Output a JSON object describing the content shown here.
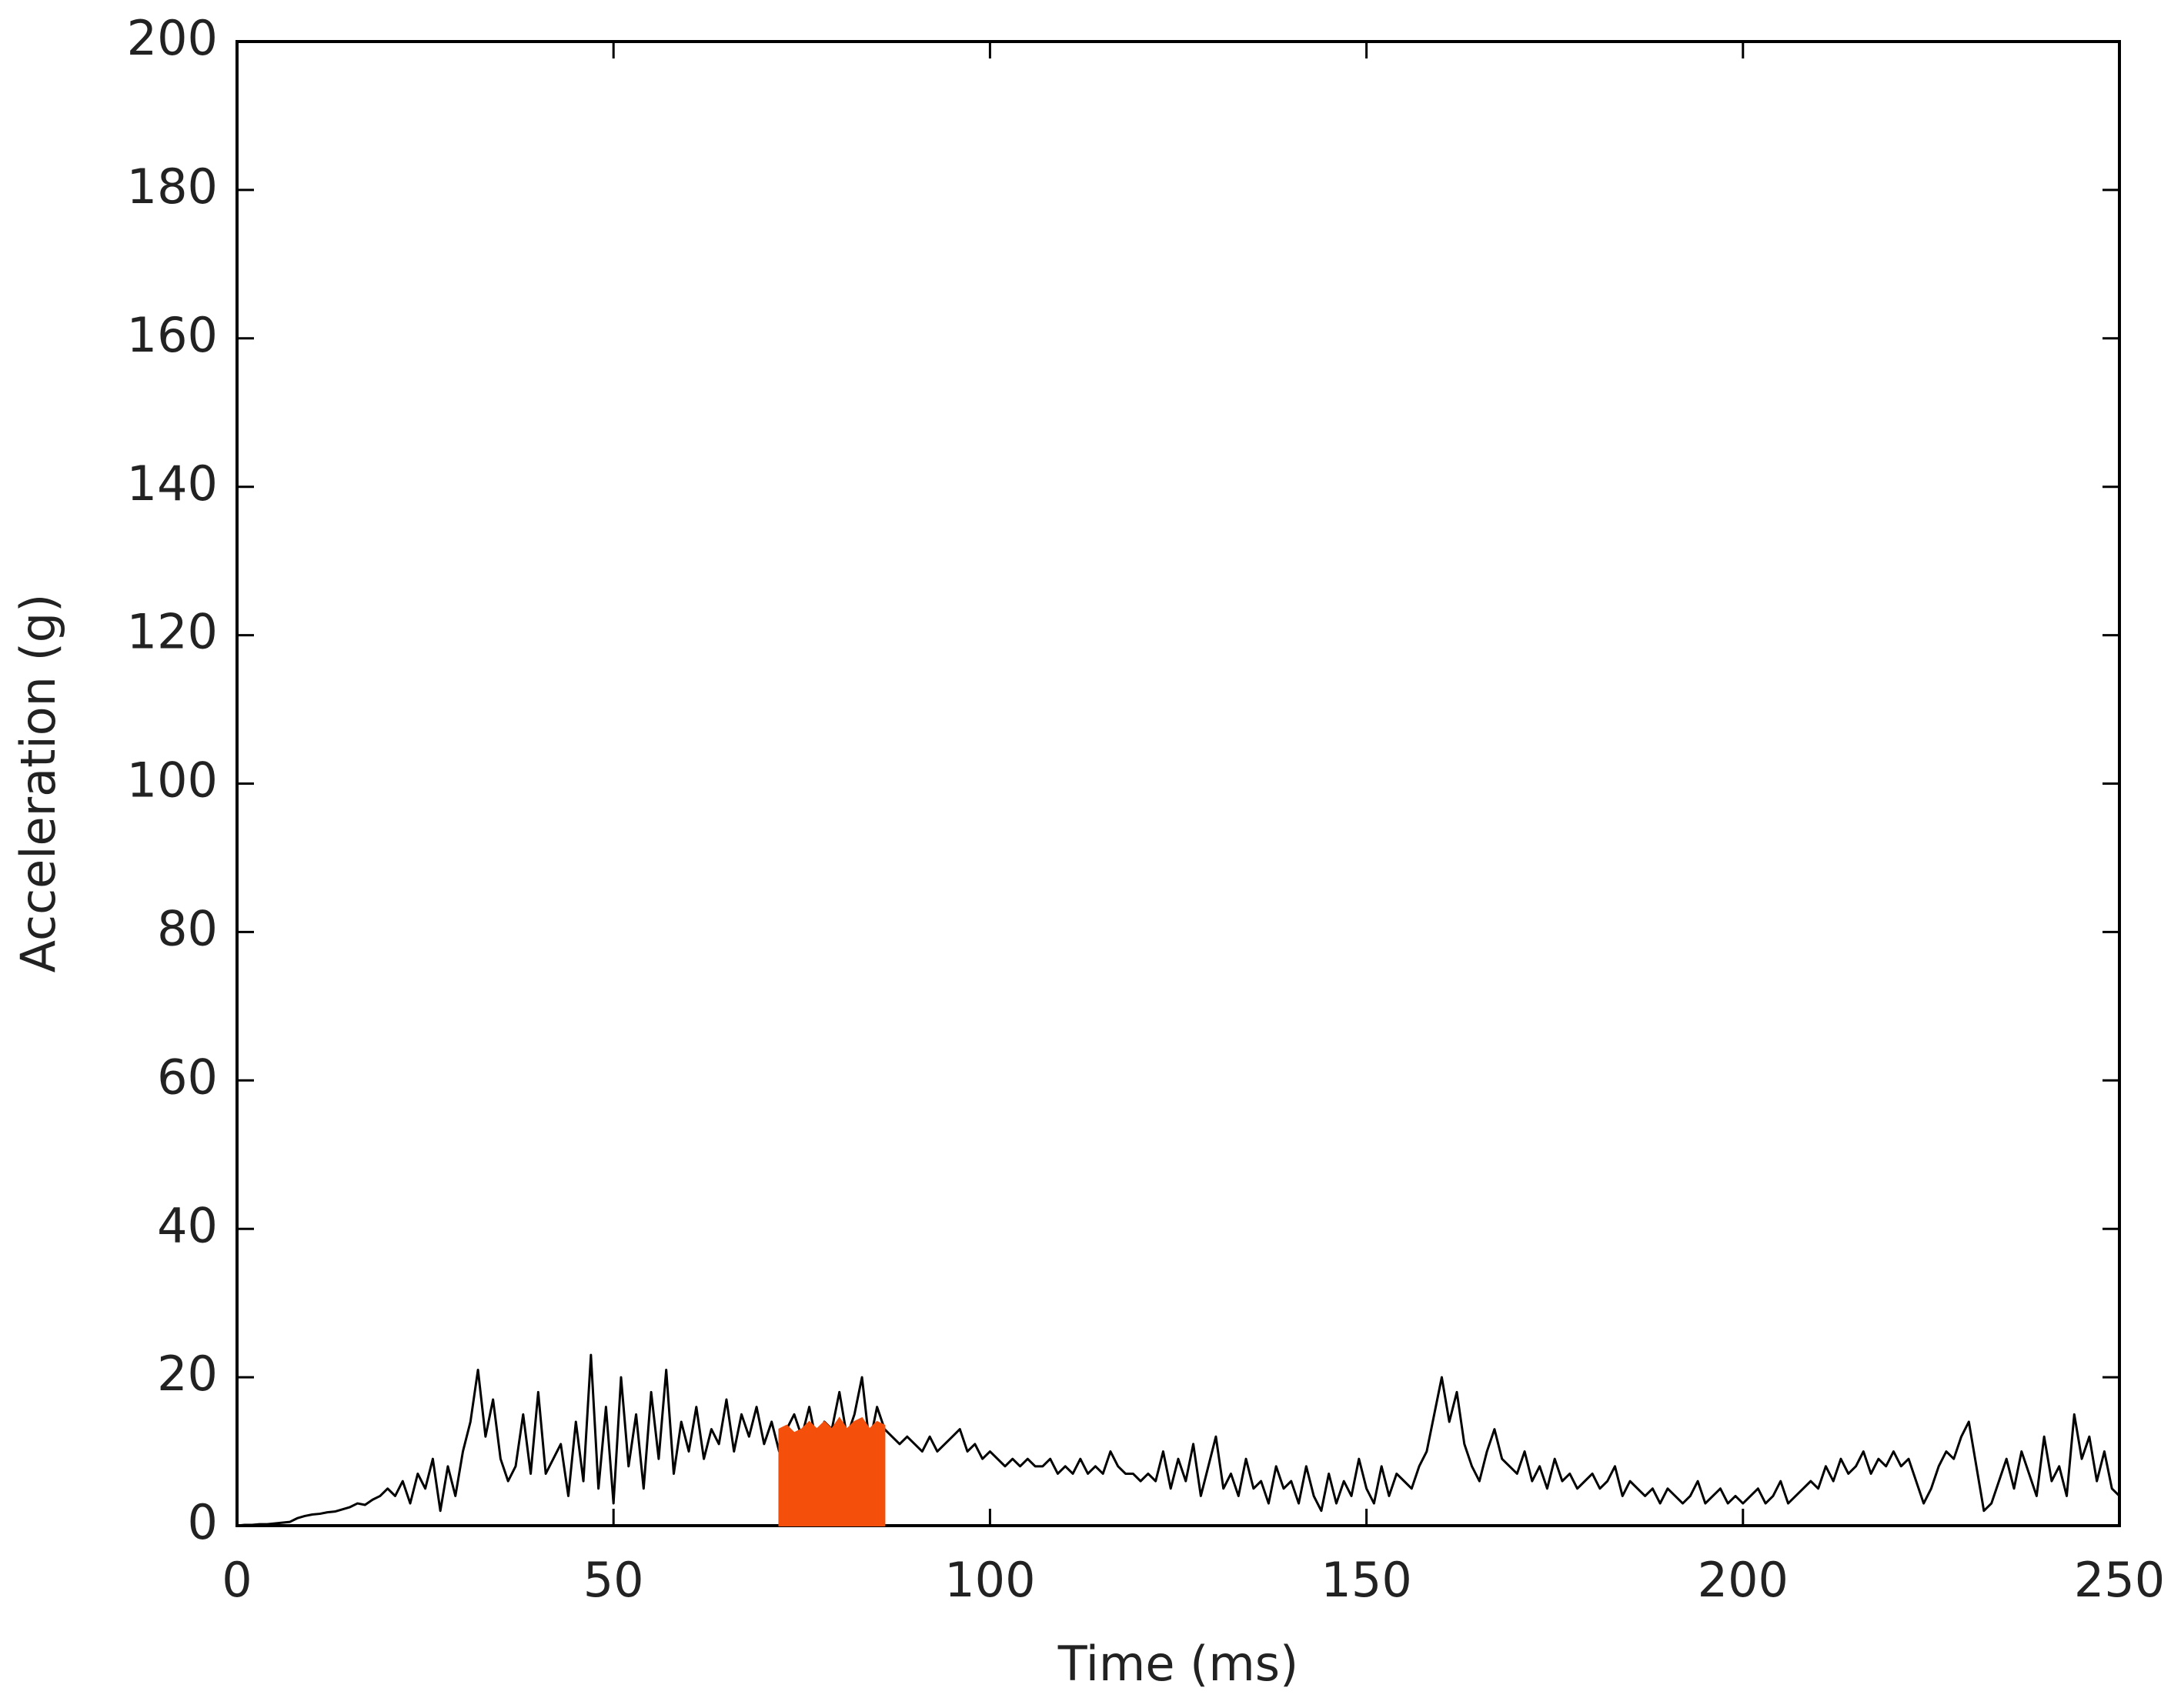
{
  "chart_data": {
    "type": "line",
    "xlabel": "Time (ms)",
    "ylabel": "Acceleration (g)",
    "xlim": [
      0,
      250
    ],
    "xticks": [
      0,
      50,
      100,
      150,
      200,
      250
    ],
    "ylim": [
      0,
      200
    ],
    "yticks": [
      0,
      20,
      40,
      60,
      80,
      100,
      120,
      140,
      160,
      180,
      200
    ],
    "grid": false,
    "x": [
      0,
      1,
      2,
      3,
      4,
      5,
      6,
      7,
      8,
      9,
      10,
      11,
      12,
      13,
      14,
      15,
      16,
      17,
      18,
      19,
      20,
      21,
      22,
      23,
      24,
      25,
      26,
      27,
      28,
      29,
      30,
      31,
      32,
      33,
      34,
      35,
      36,
      37,
      38,
      39,
      40,
      41,
      42,
      43,
      44,
      45,
      46,
      47,
      48,
      49,
      50,
      51,
      52,
      53,
      54,
      55,
      56,
      57,
      58,
      59,
      60,
      61,
      62,
      63,
      64,
      65,
      66,
      67,
      68,
      69,
      70,
      71,
      72,
      73,
      74,
      75,
      76,
      77,
      78,
      79,
      80,
      81,
      82,
      83,
      84,
      85,
      86,
      87,
      88,
      89,
      90,
      91,
      92,
      93,
      94,
      95,
      96,
      97,
      98,
      99,
      100,
      101,
      102,
      103,
      104,
      105,
      106,
      107,
      108,
      109,
      110,
      111,
      112,
      113,
      114,
      115,
      116,
      117,
      118,
      119,
      120,
      121,
      122,
      123,
      124,
      125,
      126,
      127,
      128,
      129,
      130,
      131,
      132,
      133,
      134,
      135,
      136,
      137,
      138,
      139,
      140,
      141,
      142,
      143,
      144,
      145,
      146,
      147,
      148,
      149,
      150,
      151,
      152,
      153,
      154,
      155,
      156,
      157,
      158,
      159,
      160,
      161,
      162,
      163,
      164,
      165,
      166,
      167,
      168,
      169,
      170,
      171,
      172,
      173,
      174,
      175,
      176,
      177,
      178,
      179,
      180,
      181,
      182,
      183,
      184,
      185,
      186,
      187,
      188,
      189,
      190,
      191,
      192,
      193,
      194,
      195,
      196,
      197,
      198,
      199,
      200,
      201,
      202,
      203,
      204,
      205,
      206,
      207,
      208,
      209,
      210,
      211,
      212,
      213,
      214,
      215,
      216,
      217,
      218,
      219,
      220,
      221,
      222,
      223,
      224,
      225,
      226,
      227,
      228,
      229,
      230,
      231,
      232,
      233,
      234,
      235,
      236,
      237,
      238,
      239,
      240,
      241,
      242,
      243,
      244,
      245,
      246,
      247,
      248,
      249,
      250
    ],
    "series": [
      {
        "color": "#000000",
        "values": [
          0,
          0.1,
          0.1,
          0.2,
          0.2,
          0.3,
          0.4,
          0.5,
          1,
          1.3,
          1.5,
          1.6,
          1.8,
          1.9,
          2.2,
          2.5,
          3,
          2.8,
          3.5,
          4,
          5,
          4,
          6,
          3,
          7,
          5,
          9,
          2,
          8,
          4,
          10,
          14,
          21,
          12,
          17,
          9,
          6,
          8,
          15,
          7,
          18,
          7,
          9,
          11,
          4,
          14,
          6,
          23,
          5,
          16,
          3,
          20,
          8,
          15,
          5,
          18,
          9,
          21,
          7,
          14,
          10,
          16,
          9,
          13,
          11,
          17,
          10,
          15,
          12,
          16,
          11,
          14,
          10,
          13,
          15,
          12,
          16,
          11,
          14,
          13,
          18,
          12,
          15,
          20,
          11,
          16,
          13,
          12,
          11,
          12,
          11,
          10,
          12,
          10,
          11,
          12,
          13,
          10,
          11,
          9,
          10,
          9,
          8,
          9,
          8,
          9,
          8,
          8,
          9,
          7,
          8,
          7,
          9,
          7,
          8,
          7,
          10,
          8,
          7,
          7,
          6,
          7,
          6,
          10,
          5,
          9,
          6,
          11,
          4,
          8,
          12,
          5,
          7,
          4,
          9,
          5,
          6,
          3,
          8,
          5,
          6,
          3,
          8,
          4,
          2,
          7,
          3,
          6,
          4,
          9,
          5,
          3,
          8,
          4,
          7,
          6,
          5,
          8,
          10,
          15,
          20,
          14,
          18,
          11,
          8,
          6,
          10,
          13,
          9,
          8,
          7,
          10,
          6,
          8,
          5,
          9,
          6,
          7,
          5,
          6,
          7,
          5,
          6,
          8,
          4,
          6,
          5,
          4,
          5,
          3,
          5,
          4,
          3,
          4,
          6,
          3,
          4,
          5,
          3,
          4,
          3,
          4,
          5,
          3,
          4,
          6,
          3,
          4,
          5,
          6,
          5,
          8,
          6,
          9,
          7,
          8,
          10,
          7,
          9,
          8,
          10,
          8,
          9,
          6,
          3,
          5,
          8,
          10,
          9,
          12,
          14,
          8,
          2,
          3,
          6,
          9,
          5,
          10,
          7,
          4,
          12,
          6,
          8,
          4,
          15,
          9,
          12,
          6,
          10,
          5,
          4
        ]
      },
      {
        "color": "#f4500b",
        "fill": true,
        "x": [
          72,
          73,
          74,
          75,
          76,
          77,
          78,
          79,
          80,
          81,
          82,
          83,
          84,
          85,
          86
        ],
        "values": [
          13,
          13.5,
          12.5,
          13,
          14,
          13,
          14,
          13,
          14.5,
          13,
          14,
          14.5,
          13,
          14,
          13.5
        ]
      }
    ]
  }
}
